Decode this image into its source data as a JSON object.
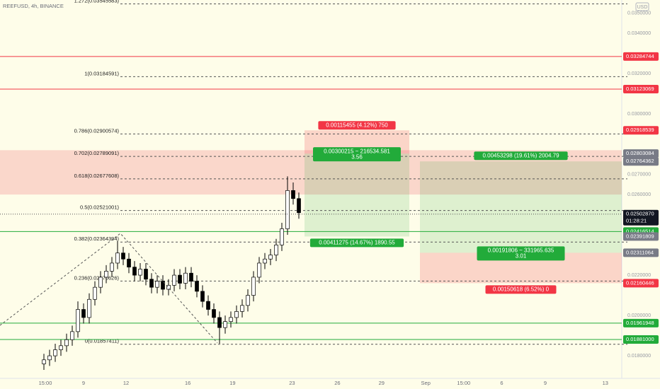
{
  "chart_data": {
    "type": "candlestick",
    "title": "REEFUSD, 4h, BINANCE",
    "currency": "USD",
    "background": "#fefde9",
    "up_color": "#ffffff",
    "down_color": "#000000",
    "xlim": [
      -7.75,
      102
    ],
    "ylim": [
      0.01688,
      0.03565
    ],
    "xticks": [
      {
        "value": 0.25,
        "label": "15:00"
      },
      {
        "value": 7,
        "label": "9"
      },
      {
        "value": 14.5,
        "label": "12"
      },
      {
        "value": 25.4,
        "label": "16"
      },
      {
        "value": 33.3,
        "label": "19"
      },
      {
        "value": 43.8,
        "label": "23"
      },
      {
        "value": 51.8,
        "label": "26"
      },
      {
        "value": 59.6,
        "label": "29"
      },
      {
        "value": 67.4,
        "label": "Sep"
      },
      {
        "value": 74.1,
        "label": "15:00"
      },
      {
        "value": 80.8,
        "label": "6"
      },
      {
        "value": 88.5,
        "label": "9"
      },
      {
        "value": 99.1,
        "label": "13"
      }
    ],
    "yticks": [
      {
        "value": 0.035,
        "label": "0.0350000"
      },
      {
        "value": 0.034,
        "label": "0.0340000"
      },
      {
        "value": 0.032,
        "label": "0.0320000"
      },
      {
        "value": 0.03,
        "label": "0.0300000"
      },
      {
        "value": 0.027,
        "label": "0.0270000"
      },
      {
        "value": 0.026,
        "label": "0.0260000"
      },
      {
        "value": 0.022,
        "label": "0.0220000"
      },
      {
        "value": 0.02,
        "label": "0.0200000"
      },
      {
        "value": 0.018,
        "label": "0.0180000"
      }
    ],
    "open": [
      0.0176,
      0.0178,
      0.018,
      0.0183,
      0.0185,
      0.0188,
      0.0192,
      0.0203,
      0.0199,
      0.0208,
      0.0214,
      0.0219,
      0.0222,
      0.0226,
      0.0231,
      0.0228,
      0.0224,
      0.022,
      0.0223,
      0.0218,
      0.0214,
      0.0217,
      0.0213,
      0.0215,
      0.022,
      0.0216,
      0.0221,
      0.0217,
      0.0212,
      0.0207,
      0.0203,
      0.0199,
      0.0194,
      0.0197,
      0.0199,
      0.0202,
      0.0205,
      0.021,
      0.0219,
      0.0226,
      0.0228,
      0.023,
      0.0235,
      0.0243,
      0.0262,
      0.0258
    ],
    "high": [
      0.0181,
      0.0183,
      0.0186,
      0.0188,
      0.0191,
      0.0195,
      0.0207,
      0.0206,
      0.0211,
      0.0217,
      0.0222,
      0.0225,
      0.0229,
      0.0237,
      0.0234,
      0.0231,
      0.0227,
      0.0226,
      0.0226,
      0.0221,
      0.022,
      0.022,
      0.0218,
      0.0223,
      0.0223,
      0.0224,
      0.0224,
      0.022,
      0.0215,
      0.021,
      0.0206,
      0.0202,
      0.02,
      0.0202,
      0.0205,
      0.0208,
      0.0213,
      0.0222,
      0.0229,
      0.0231,
      0.0233,
      0.0238,
      0.0246,
      0.0269,
      0.0266,
      0.0261
    ],
    "low": [
      0.0173,
      0.0175,
      0.0177,
      0.018,
      0.0182,
      0.0185,
      0.0189,
      0.0196,
      0.0196,
      0.0205,
      0.0211,
      0.0216,
      0.0219,
      0.0223,
      0.0225,
      0.0221,
      0.0217,
      0.0217,
      0.0215,
      0.0211,
      0.0211,
      0.021,
      0.021,
      0.0212,
      0.0213,
      0.0213,
      0.0214,
      0.0209,
      0.0204,
      0.02,
      0.0196,
      0.0186,
      0.0191,
      0.0194,
      0.0196,
      0.0199,
      0.0202,
      0.0207,
      0.0216,
      0.0223,
      0.0225,
      0.0227,
      0.0232,
      0.024,
      0.0255,
      0.0248
    ],
    "close": [
      0.0178,
      0.018,
      0.0183,
      0.0185,
      0.0188,
      0.0192,
      0.0203,
      0.0199,
      0.0208,
      0.0214,
      0.0219,
      0.0222,
      0.0226,
      0.0231,
      0.0228,
      0.0224,
      0.022,
      0.0223,
      0.0218,
      0.0214,
      0.0217,
      0.0213,
      0.0215,
      0.022,
      0.0216,
      0.0221,
      0.0217,
      0.0212,
      0.0207,
      0.0203,
      0.0199,
      0.0194,
      0.0197,
      0.0199,
      0.0202,
      0.0205,
      0.021,
      0.0219,
      0.0226,
      0.0228,
      0.023,
      0.0235,
      0.0243,
      0.0262,
      0.0258,
      0.0251
    ],
    "zone": {
      "top": 0.0282,
      "bottom": 0.026,
      "color": "#f8c9c0"
    },
    "fib_levels": [
      {
        "value": 0.03545583,
        "label": "1.272(0.03545583)"
      },
      {
        "value": 0.03184591,
        "label": "1(0.03184591)"
      },
      {
        "value": 0.02900574,
        "label": "0.786(0.02900574)"
      },
      {
        "value": 0.02789091,
        "label": "0.702(0.02789091)"
      },
      {
        "value": 0.02677608,
        "label": "0.618(0.02677608)"
      },
      {
        "value": 0.02521001,
        "label": "0.5(0.02521001)"
      },
      {
        "value": 0.02364394,
        "label": "0.382(0.02364394)"
      },
      {
        "value": 0.02170626,
        "label": "0.236(0.02170626)"
      },
      {
        "value": 0.01857411,
        "label": "0(0.01857411)"
      }
    ],
    "price_tags": [
      {
        "value": 0.03284744,
        "label": "0.03284744",
        "color": "#f23645",
        "line": true
      },
      {
        "value": 0.03123069,
        "label": "0.03123069",
        "color": "#f23645",
        "line": true
      },
      {
        "value": 0.02918539,
        "label": "0.02918539",
        "color": "#f23645",
        "line": false
      },
      {
        "value": 0.02803084,
        "label": "0.02803084",
        "color": "#787b86",
        "line": false
      },
      {
        "value": 0.02764362,
        "label": "0.02764362",
        "color": "#787b86",
        "line": false
      },
      {
        "value": 0.02416514,
        "label": "0.02416514",
        "color": "#22ab3a",
        "line": true
      },
      {
        "value": 0.02391809,
        "label": "0.02391809",
        "color": "#787b86",
        "line": false
      },
      {
        "value": 0.02311064,
        "label": "0.02311064",
        "color": "#787b86",
        "line": false
      },
      {
        "value": 0.02160446,
        "label": "0.02160446",
        "color": "#f23645",
        "line": false
      },
      {
        "value": 0.01961948,
        "label": "0.01961948",
        "color": "#22ab3a",
        "line": true
      },
      {
        "value": 0.01881,
        "label": "0.01881000",
        "color": "#22ab3a",
        "line": true
      }
    ],
    "last_price": {
      "value": 0.0250287,
      "label": "0.02502870",
      "countdown": "01:28:21"
    },
    "positions": [
      {
        "stop": "chart_data.price_tags.2",
        "entry": "chart_data.price_tags.3",
        "target": "chart_data.price_tags.6",
        "stop_label": "0.00115455 (4.12%) 750",
        "info": "0.00300215 ~ 216534.581",
        "ratio": "3.56",
        "target_label": "0.00411275 (14.67%) 1890.55"
      },
      {
        "stop": "chart_data.price_tags.8",
        "entry": "chart_data.price_tags.7",
        "target": "chart_data.price_tags.4",
        "stop_label": "0.00150618 (6.52%) 0",
        "info": "0.00191806 ~ 331965.635",
        "ratio": "3.01",
        "target_label": "0.00453298 (19.61%) 2004.79"
      }
    ]
  }
}
